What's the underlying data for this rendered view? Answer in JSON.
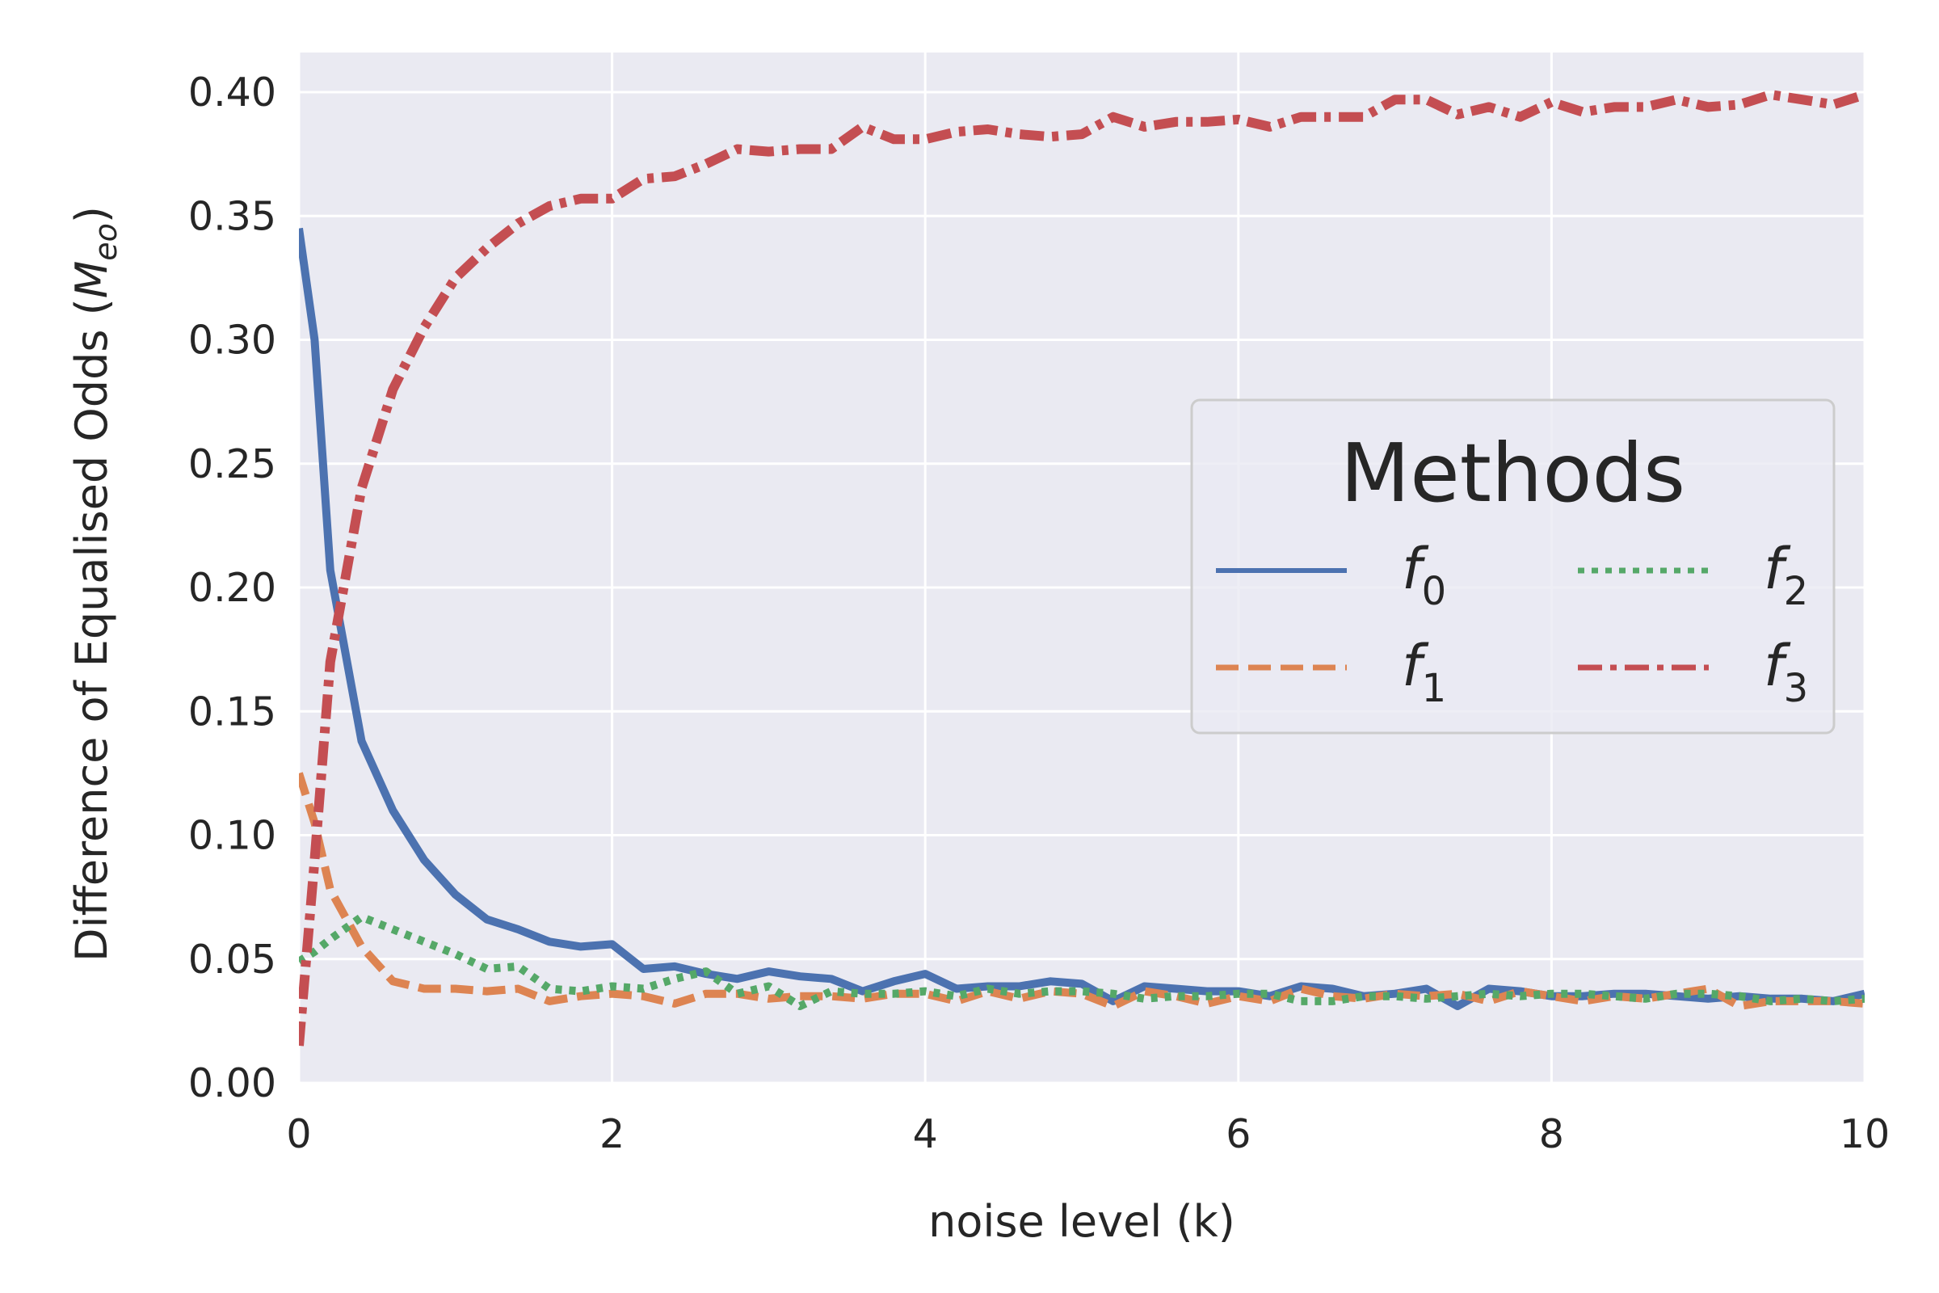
{
  "chart_data": {
    "type": "line",
    "title": "",
    "xlabel": "noise level (k)",
    "ylabel": "Difference of Equalised Odds",
    "ylabel_symbol": "M",
    "ylabel_symbol_sub": "eo",
    "xlim": [
      0,
      10
    ],
    "ylim": [
      0,
      0.416
    ],
    "xticks": [
      "0",
      "2",
      "4",
      "6",
      "8",
      "10"
    ],
    "yticks": [
      "0.00",
      "0.05",
      "0.10",
      "0.15",
      "0.20",
      "0.25",
      "0.30",
      "0.35",
      "0.40"
    ],
    "grid": true,
    "x": [
      0.0,
      0.1,
      0.2,
      0.4,
      0.6,
      0.8,
      1.0,
      1.2,
      1.4,
      1.6,
      1.8,
      2.0,
      2.2,
      2.4,
      2.6,
      2.8,
      3.0,
      3.2,
      3.4,
      3.6,
      3.8,
      4.0,
      4.2,
      4.4,
      4.6,
      4.8,
      5.0,
      5.2,
      5.4,
      5.6,
      5.8,
      6.0,
      6.2,
      6.4,
      6.6,
      6.8,
      7.0,
      7.2,
      7.4,
      7.6,
      7.8,
      8.0,
      8.2,
      8.4,
      8.6,
      8.8,
      9.0,
      9.2,
      9.4,
      9.6,
      9.8,
      10.0
    ],
    "legend": {
      "title": "Methods",
      "location": "center-right",
      "ncol": 2
    },
    "series": [
      {
        "name": "f",
        "sub": "0",
        "color": "#4c72b0",
        "style": "solid",
        "values": [
          0.345,
          0.3,
          0.207,
          0.138,
          0.11,
          0.09,
          0.076,
          0.066,
          0.062,
          0.057,
          0.055,
          0.056,
          0.046,
          0.047,
          0.044,
          0.042,
          0.045,
          0.043,
          0.042,
          0.037,
          0.041,
          0.044,
          0.038,
          0.039,
          0.039,
          0.041,
          0.04,
          0.033,
          0.039,
          0.038,
          0.037,
          0.037,
          0.035,
          0.039,
          0.038,
          0.035,
          0.036,
          0.038,
          0.031,
          0.038,
          0.037,
          0.035,
          0.035,
          0.036,
          0.036,
          0.035,
          0.034,
          0.035,
          0.034,
          0.034,
          0.033,
          0.036
        ]
      },
      {
        "name": "f",
        "sub": "1",
        "color": "#dd8452",
        "style": "dashed",
        "values": [
          0.125,
          0.105,
          0.078,
          0.055,
          0.041,
          0.038,
          0.038,
          0.037,
          0.038,
          0.033,
          0.035,
          0.036,
          0.035,
          0.032,
          0.036,
          0.036,
          0.034,
          0.035,
          0.035,
          0.034,
          0.036,
          0.036,
          0.033,
          0.037,
          0.034,
          0.037,
          0.036,
          0.031,
          0.037,
          0.035,
          0.032,
          0.035,
          0.033,
          0.038,
          0.035,
          0.034,
          0.036,
          0.035,
          0.036,
          0.033,
          0.037,
          0.035,
          0.033,
          0.035,
          0.034,
          0.036,
          0.038,
          0.031,
          0.033,
          0.033,
          0.033,
          0.032
        ]
      },
      {
        "name": "f",
        "sub": "2",
        "color": "#55a868",
        "style": "dotted",
        "values": [
          0.049,
          0.053,
          0.058,
          0.067,
          0.062,
          0.057,
          0.052,
          0.046,
          0.047,
          0.038,
          0.037,
          0.039,
          0.038,
          0.042,
          0.045,
          0.036,
          0.039,
          0.031,
          0.037,
          0.036,
          0.036,
          0.037,
          0.035,
          0.038,
          0.036,
          0.037,
          0.037,
          0.036,
          0.034,
          0.035,
          0.035,
          0.036,
          0.036,
          0.033,
          0.033,
          0.035,
          0.035,
          0.034,
          0.035,
          0.036,
          0.035,
          0.036,
          0.036,
          0.035,
          0.034,
          0.036,
          0.036,
          0.035,
          0.033,
          0.034,
          0.033,
          0.034
        ]
      },
      {
        "name": "f",
        "sub": "3",
        "color": "#c44e52",
        "style": "dashdot",
        "values": [
          0.015,
          0.09,
          0.17,
          0.24,
          0.28,
          0.305,
          0.325,
          0.337,
          0.347,
          0.354,
          0.357,
          0.357,
          0.365,
          0.366,
          0.371,
          0.377,
          0.376,
          0.377,
          0.377,
          0.386,
          0.381,
          0.381,
          0.384,
          0.385,
          0.383,
          0.382,
          0.383,
          0.39,
          0.386,
          0.388,
          0.388,
          0.389,
          0.386,
          0.39,
          0.39,
          0.39,
          0.397,
          0.397,
          0.391,
          0.394,
          0.39,
          0.396,
          0.392,
          0.394,
          0.394,
          0.397,
          0.394,
          0.395,
          0.399,
          0.397,
          0.395,
          0.399
        ]
      }
    ]
  }
}
